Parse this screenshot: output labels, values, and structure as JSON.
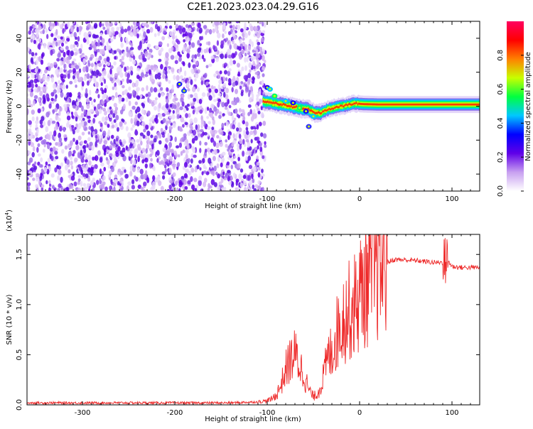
{
  "figure": {
    "title": "C2E1.2023.023.04.29.G16"
  },
  "chart_data": [
    {
      "type": "heatmap",
      "title": "",
      "xlabel": "Height of straight line (km)",
      "ylabel": "Frequency (Hz)",
      "xlim": [
        -360,
        130
      ],
      "ylim": [
        -50,
        50
      ],
      "x_ticks": [
        -300,
        -200,
        -100,
        0,
        100
      ],
      "x_tick_labels": [
        "-300",
        "-200",
        "-100",
        "0",
        "100"
      ],
      "y_ticks": [
        -40,
        -20,
        0,
        20,
        40
      ],
      "y_tick_labels": [
        "-40",
        "-20",
        "0",
        "20",
        "40"
      ],
      "noise_region_x": [
        -360,
        -102
      ],
      "signal_trace": {
        "x": [
          -105,
          -95,
          -85,
          -75,
          -65,
          -55,
          -48,
          -42,
          -35,
          -25,
          -15,
          -5,
          5,
          20,
          40,
          60,
          80,
          100,
          130
        ],
        "y": [
          3,
          2,
          1,
          0,
          -1,
          -2,
          -4,
          -4,
          -2,
          -0.5,
          0.5,
          1.5,
          1.2,
          1,
          1,
          1,
          1,
          1,
          1
        ]
      },
      "colorbar": {
        "label": "Normalized spectral amplitude",
        "range": [
          0,
          1
        ],
        "ticks": [
          0.0,
          0.2,
          0.4,
          0.6,
          0.8
        ],
        "tick_labels": [
          "0.0",
          "0.2",
          "0.4",
          "0.6",
          "0.8"
        ],
        "colors": [
          "#ffffff",
          "#c8a0f0",
          "#6000e8",
          "#0000ff",
          "#00c8ff",
          "#00ff40",
          "#c8ff00",
          "#ff8000",
          "#ff0000",
          "#ff0060"
        ]
      },
      "grid": false
    },
    {
      "type": "line",
      "title": "",
      "xlabel": "Height of straight line (km)",
      "ylabel": "SNR (10 * v/v)",
      "scale_label": "(x10",
      "scale_exponent": "4",
      "scale_close": ")",
      "xlim": [
        -360,
        130
      ],
      "ylim": [
        0,
        1.7
      ],
      "x_ticks": [
        -300,
        -200,
        -100,
        0,
        100
      ],
      "x_tick_labels": [
        "-300",
        "-200",
        "-100",
        "0",
        "100"
      ],
      "y_ticks": [
        0.0,
        0.5,
        1.0,
        1.5
      ],
      "y_tick_labels": [
        "0.0",
        "0.5",
        "1.0",
        "1.5"
      ],
      "series": [
        {
          "color": "#ee2a2a",
          "x": [
            -360,
            -300,
            -200,
            -140,
            -110,
            -100,
            -95,
            -90,
            -85,
            -80,
            -75,
            -70,
            -65,
            -60,
            -55,
            -50,
            -45,
            -40,
            -35,
            -30,
            -25,
            -20,
            -15,
            -10,
            -5,
            0,
            5,
            10,
            15,
            20,
            25,
            30,
            35,
            40,
            60,
            80,
            90,
            95,
            100,
            110,
            120,
            130
          ],
          "y": [
            0.02,
            0.02,
            0.02,
            0.02,
            0.03,
            0.04,
            0.06,
            0.1,
            0.2,
            0.35,
            0.45,
            0.5,
            0.4,
            0.3,
            0.15,
            0.08,
            0.12,
            0.25,
            0.45,
            0.55,
            0.7,
            0.85,
            0.9,
            0.95,
            1.0,
            1.1,
            1.2,
            1.25,
            1.3,
            1.35,
            1.4,
            1.42,
            1.44,
            1.45,
            1.44,
            1.42,
            1.42,
            1.45,
            1.38,
            1.37,
            1.37,
            1.37
          ]
        }
      ],
      "grid": false
    }
  ]
}
